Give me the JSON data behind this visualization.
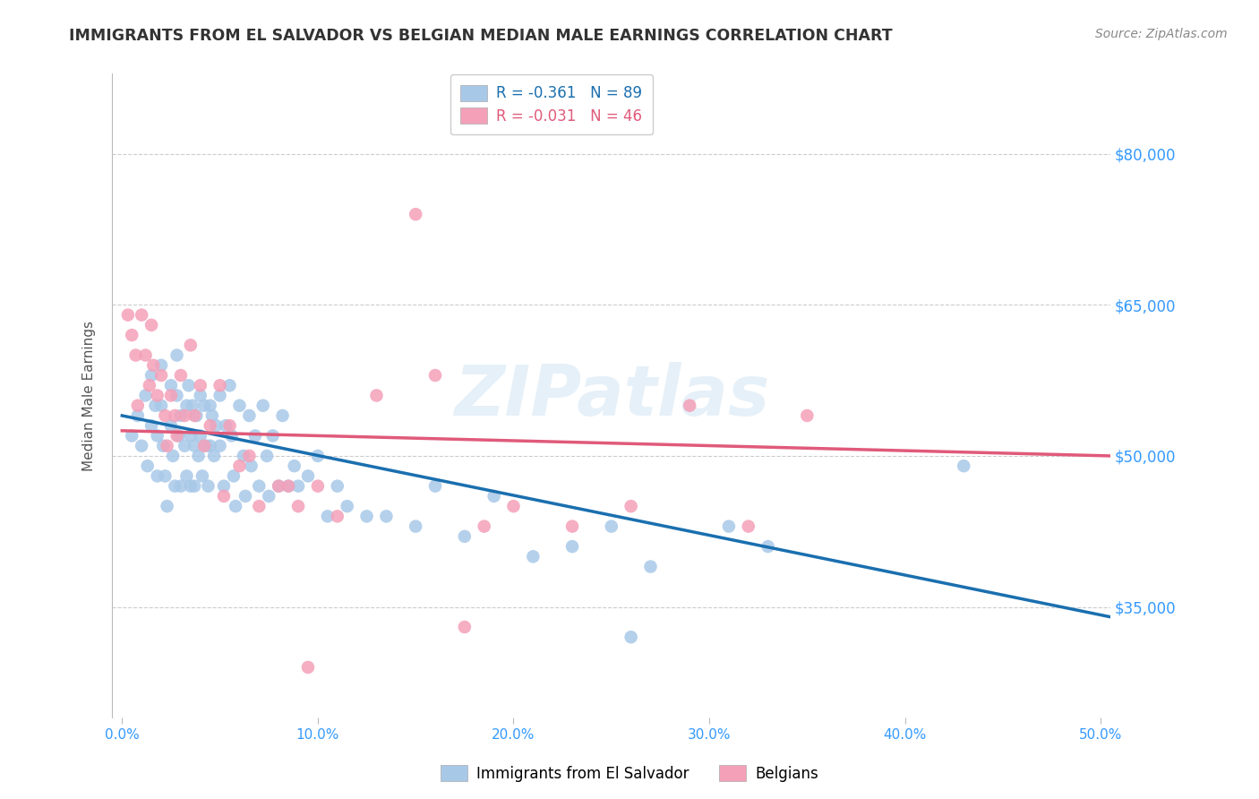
{
  "title": "IMMIGRANTS FROM EL SALVADOR VS BELGIAN MEDIAN MALE EARNINGS CORRELATION CHART",
  "source": "Source: ZipAtlas.com",
  "ylabel": "Median Male Earnings",
  "xlabel_ticks": [
    "0.0%",
    "10.0%",
    "20.0%",
    "30.0%",
    "40.0%",
    "50.0%"
  ],
  "xlabel_vals": [
    0.0,
    0.1,
    0.2,
    0.3,
    0.4,
    0.5
  ],
  "ytick_labels": [
    "$35,000",
    "$50,000",
    "$65,000",
    "$80,000"
  ],
  "ytick_vals": [
    35000,
    50000,
    65000,
    80000
  ],
  "xlim": [
    -0.005,
    0.505
  ],
  "ylim": [
    24000,
    88000
  ],
  "legend_entry1": "R = -0.361   N = 89",
  "legend_entry2": "R = -0.031   N = 46",
  "legend_label1": "Immigrants from El Salvador",
  "legend_label2": "Belgians",
  "color_blue": "#a8c8e8",
  "color_pink": "#f4a0b8",
  "line_blue": "#1a6faf",
  "line_pink": "#e05a7a",
  "watermark": "ZIPatlas",
  "blue_scatter_x": [
    0.005,
    0.008,
    0.01,
    0.012,
    0.013,
    0.015,
    0.015,
    0.017,
    0.018,
    0.018,
    0.02,
    0.02,
    0.021,
    0.022,
    0.023,
    0.025,
    0.025,
    0.026,
    0.027,
    0.028,
    0.028,
    0.029,
    0.03,
    0.03,
    0.032,
    0.033,
    0.033,
    0.034,
    0.035,
    0.035,
    0.036,
    0.037,
    0.037,
    0.038,
    0.039,
    0.04,
    0.04,
    0.041,
    0.042,
    0.043,
    0.044,
    0.045,
    0.045,
    0.046,
    0.047,
    0.048,
    0.05,
    0.05,
    0.052,
    0.053,
    0.055,
    0.056,
    0.057,
    0.058,
    0.06,
    0.062,
    0.063,
    0.065,
    0.066,
    0.068,
    0.07,
    0.072,
    0.074,
    0.075,
    0.077,
    0.08,
    0.082,
    0.085,
    0.088,
    0.09,
    0.095,
    0.1,
    0.105,
    0.11,
    0.115,
    0.125,
    0.135,
    0.15,
    0.16,
    0.175,
    0.19,
    0.21,
    0.23,
    0.25,
    0.27,
    0.31,
    0.33,
    0.43,
    0.26
  ],
  "blue_scatter_y": [
    52000,
    54000,
    51000,
    56000,
    49000,
    58000,
    53000,
    55000,
    52000,
    48000,
    59000,
    55000,
    51000,
    48000,
    45000,
    57000,
    53000,
    50000,
    47000,
    60000,
    56000,
    52000,
    47000,
    54000,
    51000,
    48000,
    55000,
    57000,
    52000,
    47000,
    55000,
    51000,
    47000,
    54000,
    50000,
    56000,
    52000,
    48000,
    55000,
    51000,
    47000,
    55000,
    51000,
    54000,
    50000,
    53000,
    56000,
    51000,
    47000,
    53000,
    57000,
    52000,
    48000,
    45000,
    55000,
    50000,
    46000,
    54000,
    49000,
    52000,
    47000,
    55000,
    50000,
    46000,
    52000,
    47000,
    54000,
    47000,
    49000,
    47000,
    48000,
    50000,
    44000,
    47000,
    45000,
    44000,
    44000,
    43000,
    47000,
    42000,
    46000,
    40000,
    41000,
    43000,
    39000,
    43000,
    41000,
    49000,
    32000
  ],
  "pink_scatter_x": [
    0.003,
    0.005,
    0.007,
    0.008,
    0.01,
    0.012,
    0.014,
    0.015,
    0.016,
    0.018,
    0.02,
    0.022,
    0.023,
    0.025,
    0.027,
    0.028,
    0.03,
    0.032,
    0.035,
    0.037,
    0.04,
    0.042,
    0.045,
    0.05,
    0.052,
    0.055,
    0.06,
    0.065,
    0.07,
    0.08,
    0.085,
    0.09,
    0.1,
    0.11,
    0.13,
    0.16,
    0.185,
    0.2,
    0.23,
    0.26,
    0.29,
    0.32,
    0.35,
    0.15,
    0.095,
    0.175
  ],
  "pink_scatter_y": [
    64000,
    62000,
    60000,
    55000,
    64000,
    60000,
    57000,
    63000,
    59000,
    56000,
    58000,
    54000,
    51000,
    56000,
    54000,
    52000,
    58000,
    54000,
    61000,
    54000,
    57000,
    51000,
    53000,
    57000,
    46000,
    53000,
    49000,
    50000,
    45000,
    47000,
    47000,
    45000,
    47000,
    44000,
    56000,
    58000,
    43000,
    45000,
    43000,
    45000,
    55000,
    43000,
    54000,
    74000,
    29000,
    33000
  ],
  "blue_trend_x": [
    0.0,
    0.505
  ],
  "blue_trend_y": [
    54000,
    34000
  ],
  "pink_trend_x": [
    0.0,
    0.505
  ],
  "pink_trend_y": [
    52500,
    50000
  ],
  "grid_color": "#cccccc",
  "title_color": "#333333",
  "source_color": "#888888",
  "axis_label_color": "#555555",
  "tick_color": "#3399ff",
  "watermark_color": "#c8dff0",
  "watermark_alpha": 0.45
}
